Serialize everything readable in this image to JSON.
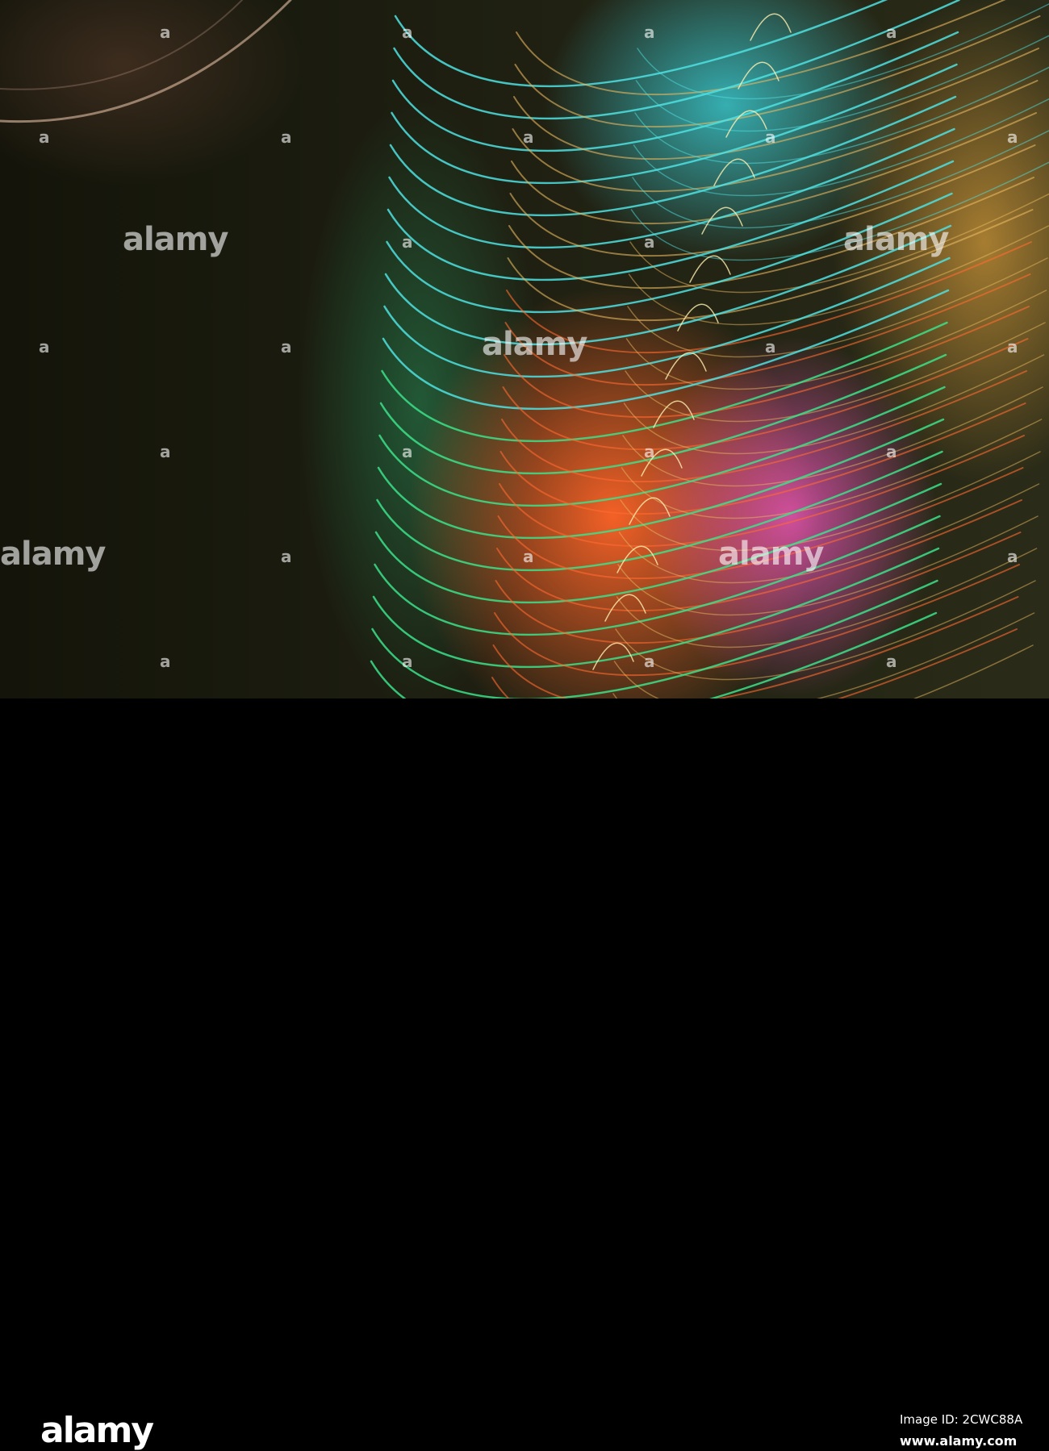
{
  "photo": {
    "description_colors": {
      "cyan": "#4fe0e0",
      "green": "#3ce08a",
      "orange": "#ff6a30",
      "pink": "#ff5ac8",
      "gold": "#e8b860"
    }
  },
  "watermark": {
    "text": "alamy",
    "mark": "a"
  },
  "footer": {
    "logo": "alamy",
    "image_id": "Image ID: 2CWC88A",
    "website": "www.alamy.com"
  }
}
